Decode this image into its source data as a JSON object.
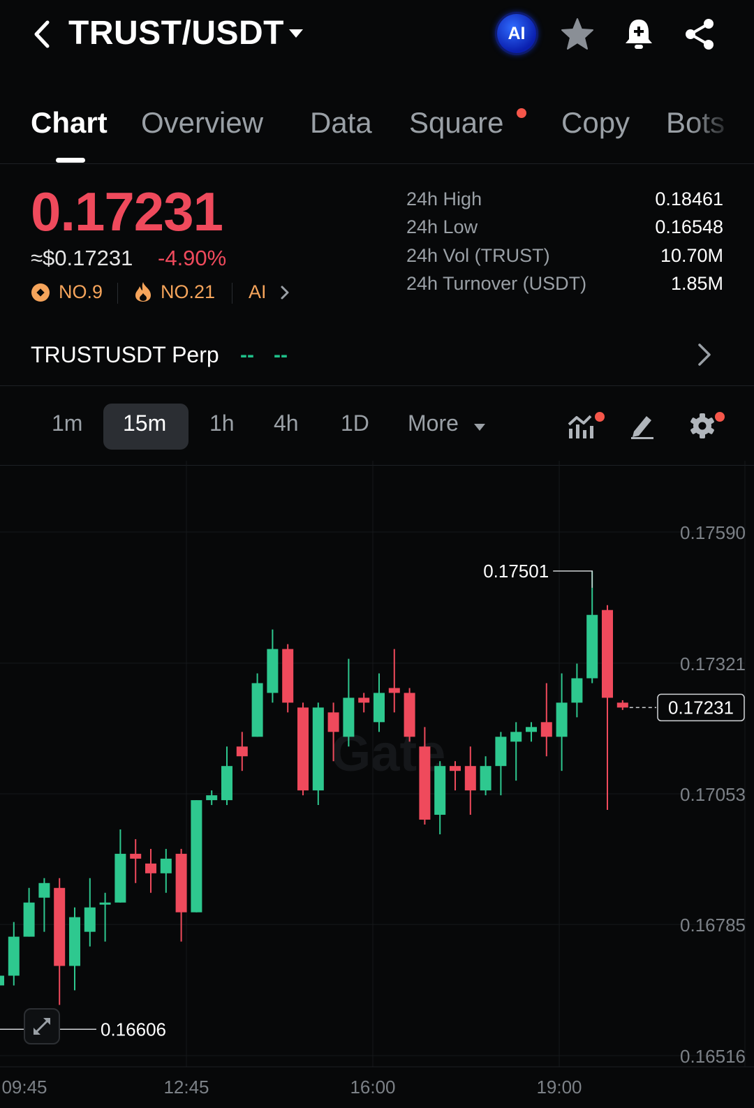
{
  "header": {
    "pair": "TRUST/USDT",
    "ai_badge": "AI",
    "icons": [
      "back-icon",
      "caret-down-icon",
      "star-icon",
      "bell-plus-icon",
      "share-icon"
    ]
  },
  "tabs": [
    {
      "label": "Chart",
      "active": true
    },
    {
      "label": "Overview"
    },
    {
      "label": "Data"
    },
    {
      "label": "Square",
      "has_dot": true
    },
    {
      "label": "Copy"
    },
    {
      "label": "Bots"
    }
  ],
  "ticker": {
    "last_price": "0.17231",
    "usd_price": "≈$0.17231",
    "change_pct": "-4.90%",
    "rank1": "NO.9",
    "rank2": "NO.21",
    "ai_link": "AI",
    "stats": [
      {
        "label": "24h High",
        "value": "0.18461"
      },
      {
        "label": "24h Low",
        "value": "0.16548"
      },
      {
        "label": "24h Vol (TRUST)",
        "value": "10.70M"
      },
      {
        "label": "24h Turnover (USDT)",
        "value": "1.85M"
      }
    ]
  },
  "perp": {
    "label": "TRUSTUSDT Perp",
    "dash1": "--",
    "dash2": "--"
  },
  "intervals": [
    "1m",
    "15m",
    "1h",
    "4h",
    "1D",
    "More"
  ],
  "active_interval": "15m",
  "colors": {
    "up": "#2ec88f",
    "down": "#ef4a5c",
    "accent_orange": "#f5a45b",
    "bg": "#070809"
  },
  "chart_data": {
    "type": "candlestick",
    "y_ticks": [
      "0.17590",
      "0.17321",
      "0.17053",
      "0.16785",
      "0.16516"
    ],
    "x_ticks": [
      "09:45",
      "12:45",
      "16:00",
      "19:00"
    ],
    "ylim": [
      0.16516,
      0.1759
    ],
    "high_marker": "0.17501",
    "low_marker": "0.16606",
    "last_price_label": "0.17231",
    "watermark": "Gate",
    "candles": [
      [
        0.1666,
        0.1668,
        0.1662,
        0.1657
      ],
      [
        0.1668,
        0.1676,
        0.1679,
        0.1666
      ],
      [
        0.1676,
        0.1683,
        0.1686,
        0.1676
      ],
      [
        0.1684,
        0.1687,
        0.1688,
        0.1677
      ],
      [
        0.1686,
        0.167,
        0.1688,
        0.1662
      ],
      [
        0.167,
        0.168,
        0.1682,
        0.1665
      ],
      [
        0.1677,
        0.1682,
        0.1688,
        0.1674
      ],
      [
        0.1683,
        0.1683,
        0.1685,
        0.1675
      ],
      [
        0.1683,
        0.1693,
        0.1698,
        0.1683
      ],
      [
        0.1693,
        0.1692,
        0.1696,
        0.1687
      ],
      [
        0.1691,
        0.1689,
        0.1694,
        0.1685
      ],
      [
        0.1689,
        0.1692,
        0.1694,
        0.1685
      ],
      [
        0.1693,
        0.1681,
        0.1694,
        0.1675
      ],
      [
        0.1681,
        0.1704,
        0.1704,
        0.1681
      ],
      [
        0.1704,
        0.1705,
        0.1706,
        0.1703
      ],
      [
        0.1704,
        0.1711,
        0.1715,
        0.1703
      ],
      [
        0.1715,
        0.1713,
        0.1718,
        0.171
      ],
      [
        0.1717,
        0.1728,
        0.173,
        0.1717
      ],
      [
        0.1726,
        0.1735,
        0.1739,
        0.1724
      ],
      [
        0.1735,
        0.1724,
        0.1736,
        0.1722
      ],
      [
        0.1723,
        0.1706,
        0.1724,
        0.1705
      ],
      [
        0.1706,
        0.1723,
        0.1724,
        0.1703
      ],
      [
        0.1722,
        0.1718,
        0.1724,
        0.1712
      ],
      [
        0.1717,
        0.1725,
        0.1733,
        0.1715
      ],
      [
        0.1725,
        0.1724,
        0.1726,
        0.1722
      ],
      [
        0.172,
        0.1726,
        0.173,
        0.1718
      ],
      [
        0.1727,
        0.1726,
        0.1735,
        0.1722
      ],
      [
        0.1726,
        0.1717,
        0.1727,
        0.1716
      ],
      [
        0.1715,
        0.17,
        0.1719,
        0.1699
      ],
      [
        0.1701,
        0.1711,
        0.1712,
        0.1697
      ],
      [
        0.1711,
        0.171,
        0.1712,
        0.1706
      ],
      [
        0.1711,
        0.1706,
        0.1715,
        0.1701
      ],
      [
        0.1706,
        0.1711,
        0.1713,
        0.1705
      ],
      [
        0.1711,
        0.1717,
        0.1718,
        0.1705
      ],
      [
        0.1716,
        0.1718,
        0.172,
        0.1708
      ],
      [
        0.1718,
        0.1719,
        0.172,
        0.1716
      ],
      [
        0.172,
        0.1717,
        0.1728,
        0.1713
      ],
      [
        0.1717,
        0.1724,
        0.173,
        0.171
      ],
      [
        0.1724,
        0.1729,
        0.1732,
        0.1721
      ],
      [
        0.1729,
        0.1742,
        0.1751,
        0.1728
      ],
      [
        0.1743,
        0.1725,
        0.1744,
        0.1702
      ],
      [
        0.1724,
        0.1723,
        0.17245,
        0.17225
      ]
    ]
  }
}
